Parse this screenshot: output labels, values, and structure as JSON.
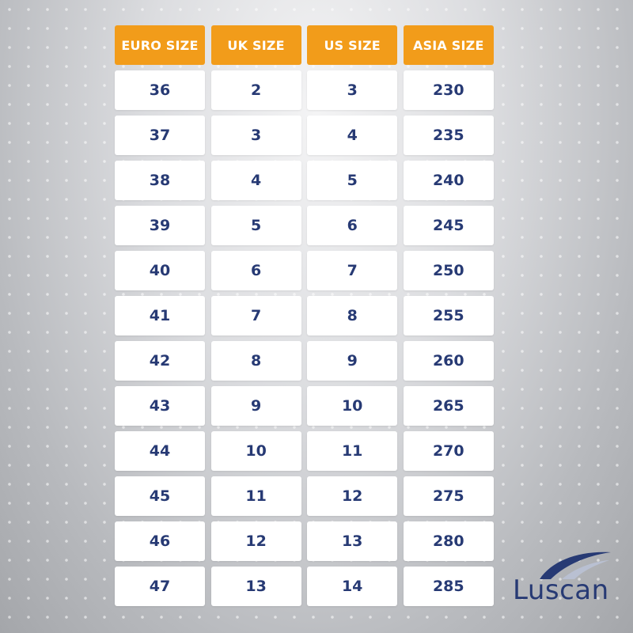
{
  "table": {
    "headers": [
      "EURO SIZE",
      "UK SIZE",
      "US SIZE",
      "ASIA SIZE"
    ],
    "rows": [
      [
        "36",
        "2",
        "3",
        "230"
      ],
      [
        "37",
        "3",
        "4",
        "235"
      ],
      [
        "38",
        "4",
        "5",
        "240"
      ],
      [
        "39",
        "5",
        "6",
        "245"
      ],
      [
        "40",
        "6",
        "7",
        "250"
      ],
      [
        "41",
        "7",
        "8",
        "255"
      ],
      [
        "42",
        "8",
        "9",
        "260"
      ],
      [
        "43",
        "9",
        "10",
        "265"
      ],
      [
        "44",
        "10",
        "11",
        "270"
      ],
      [
        "45",
        "11",
        "12",
        "275"
      ],
      [
        "46",
        "12",
        "13",
        "280"
      ],
      [
        "47",
        "13",
        "14",
        "285"
      ]
    ]
  },
  "brand": {
    "name": "Luscan",
    "logo_icon": "swoosh-logo-icon"
  },
  "colors": {
    "header_bg": "#f29c1a",
    "header_text": "#ffffff",
    "cell_bg": "#ffffff",
    "cell_text": "#273a74",
    "brand": "#273a74"
  }
}
